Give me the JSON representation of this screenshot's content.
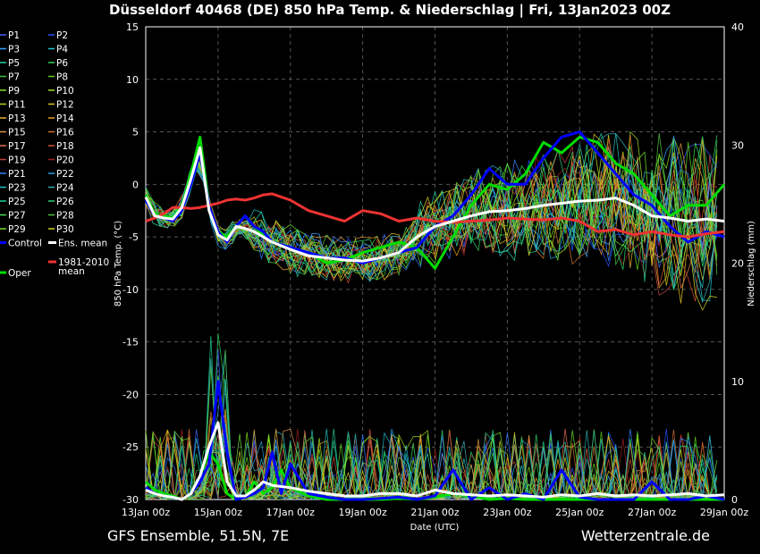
{
  "chart_data": {
    "type": "line",
    "title": "Düsseldorf 40468 (DE)  850 hPa Temp. & Niederschlag | Fri, 13Jan2023 00Z",
    "xlabel": "Date (UTC)",
    "ylabel": "850 hPa Temp. (°C)",
    "y2label": "Niederschlag (mm)",
    "footer_left": "GFS Ensemble, 51.5N, 7E",
    "footer_right": "Wetterzentrale.de",
    "xlim": [
      0,
      16
    ],
    "ylim": [
      -30,
      15
    ],
    "y2lim": [
      0,
      40
    ],
    "grid": true,
    "x_ticks": [
      {
        "x": 0,
        "label": "13Jan 00z"
      },
      {
        "x": 2,
        "label": "15Jan 00z"
      },
      {
        "x": 4,
        "label": "17Jan 00z"
      },
      {
        "x": 6,
        "label": "19Jan 00z"
      },
      {
        "x": 8,
        "label": "21Jan 00z"
      },
      {
        "x": 10,
        "label": "23Jan 00z"
      },
      {
        "x": 12,
        "label": "25Jan 00z"
      },
      {
        "x": 14,
        "label": "27Jan 00z"
      },
      {
        "x": 16,
        "label": "29Jan 00z"
      }
    ],
    "y_ticks": [
      15,
      10,
      5,
      0,
      -5,
      -10,
      -15,
      -20,
      -25,
      -30
    ],
    "y2_ticks": [
      40,
      30,
      20,
      10,
      0
    ],
    "legend": {
      "placement": "left",
      "members": [
        "P1",
        "P2",
        "P3",
        "P4",
        "P5",
        "P6",
        "P7",
        "P8",
        "P9",
        "P10",
        "P11",
        "P12",
        "P13",
        "P14",
        "P15",
        "P16",
        "P17",
        "P18",
        "P19",
        "P20",
        "P21",
        "P22",
        "P23",
        "P24",
        "P25",
        "P26",
        "P27",
        "P28",
        "P29",
        "P30"
      ],
      "member_colors": [
        "#4060ff",
        "#2050ff",
        "#30a0ff",
        "#20c0d0",
        "#20d0a0",
        "#30d060",
        "#40c040",
        "#60d020",
        "#80e020",
        "#a0e020",
        "#c0d020",
        "#e0c020",
        "#e0b030",
        "#f0a020",
        "#e09040",
        "#d07030",
        "#e07050",
        "#d05030",
        "#c04040",
        "#a02020",
        "#3080ff",
        "#20a0e0",
        "#20c0c0",
        "#30b0b0",
        "#20d090",
        "#30d070",
        "#40e050",
        "#50c040",
        "#70e030",
        "#d0d020"
      ],
      "control": {
        "label": "Control",
        "color": "#0000ff"
      },
      "ens_mean": {
        "label": "Ens. mean",
        "color": "#ffffff"
      },
      "oper": {
        "label": "Oper",
        "color": "#00dd00"
      },
      "clim": {
        "label_line1": "1981-2010",
        "label_line2": "mean",
        "color": "#ee3333"
      }
    },
    "series": [
      {
        "name": "Control",
        "axis": "temp",
        "x": [
          0,
          0.25,
          0.5,
          0.75,
          1,
          1.25,
          1.5,
          1.75,
          2,
          2.25,
          2.5,
          2.75,
          3,
          3.25,
          3.5,
          4,
          4.5,
          5,
          5.5,
          6,
          6.5,
          7,
          7.5,
          8,
          8.5,
          9,
          9.5,
          10,
          10.5,
          11,
          11.5,
          12,
          12.5,
          13,
          13.5,
          14,
          14.5,
          15,
          15.5,
          16
        ],
        "y": [
          -1.5,
          -3,
          -3.2,
          -3.5,
          -2.5,
          0,
          3,
          -2,
          -4.5,
          -5.5,
          -4,
          -3,
          -4,
          -4.5,
          -5.5,
          -6,
          -6.5,
          -7,
          -7,
          -7.5,
          -7,
          -6.5,
          -6,
          -4,
          -3,
          -1,
          1.5,
          0,
          0,
          2.5,
          4.5,
          5,
          3,
          1,
          -1,
          -2,
          -4,
          -5.5,
          -4.5,
          -5
        ]
      },
      {
        "name": "Oper",
        "axis": "temp",
        "x": [
          0,
          0.25,
          0.5,
          0.75,
          1,
          1.25,
          1.5,
          1.75,
          2,
          2.25,
          2.5,
          2.75,
          3,
          3.25,
          3.5,
          4,
          4.5,
          5,
          5.5,
          6,
          6.5,
          7,
          7.5,
          8,
          8.5,
          9,
          9.5,
          10,
          10.5,
          11,
          11.5,
          12,
          12.5,
          13,
          13.5,
          14,
          14.5,
          15,
          15.5,
          16
        ],
        "y": [
          -1,
          -2.8,
          -3,
          -3.2,
          -2,
          1,
          4.5,
          -2,
          -4.5,
          -5,
          -4,
          -3,
          -4,
          -4.8,
          -5.5,
          -6,
          -6.5,
          -7.5,
          -7.2,
          -6.5,
          -6,
          -5.5,
          -6,
          -8,
          -5,
          -2,
          0,
          -0.5,
          1,
          4,
          3,
          4.5,
          4,
          2,
          1,
          -1,
          -3,
          -2,
          -2,
          0
        ]
      },
      {
        "name": "Ens. mean",
        "axis": "temp",
        "x": [
          0,
          0.25,
          0.5,
          0.75,
          1,
          1.25,
          1.5,
          1.75,
          2,
          2.25,
          2.5,
          2.75,
          3,
          3.25,
          3.5,
          4,
          4.5,
          5,
          5.5,
          6,
          6.5,
          7,
          7.5,
          8,
          8.5,
          9,
          9.5,
          10,
          10.5,
          11,
          11.5,
          12,
          12.5,
          13,
          13.5,
          14,
          14.5,
          15,
          15.5,
          16
        ],
        "y": [
          -1.2,
          -3,
          -3.2,
          -3.3,
          -2.2,
          0.5,
          3.5,
          -2.5,
          -4.8,
          -5.3,
          -4,
          -4.2,
          -4.5,
          -5,
          -5.5,
          -6.2,
          -6.8,
          -7,
          -7.2,
          -7.3,
          -7,
          -6.5,
          -5,
          -4,
          -3.5,
          -3,
          -2.6,
          -2.5,
          -2.3,
          -2,
          -1.8,
          -1.6,
          -1.5,
          -1.3,
          -2,
          -3,
          -3.2,
          -3.5,
          -3.3,
          -3.5
        ]
      },
      {
        "name": "1981-2010 mean",
        "axis": "temp",
        "x": [
          0,
          0.25,
          0.5,
          0.75,
          1,
          1.25,
          1.5,
          1.75,
          2,
          2.25,
          2.5,
          2.75,
          3,
          3.25,
          3.5,
          4,
          4.5,
          5,
          5.5,
          6,
          6.5,
          7,
          7.5,
          8,
          8.5,
          9,
          9.5,
          10,
          10.5,
          11,
          11.5,
          12,
          12.5,
          13,
          13.5,
          14,
          14.5,
          15,
          15.5,
          16
        ],
        "y": [
          -3.5,
          -3.2,
          -2.8,
          -2.2,
          -2.2,
          -2.3,
          -2.2,
          -2,
          -1.8,
          -1.5,
          -1.4,
          -1.5,
          -1.3,
          -1,
          -0.9,
          -1.5,
          -2.5,
          -3,
          -3.5,
          -2.5,
          -2.8,
          -3.5,
          -3.2,
          -3.5,
          -3.6,
          -3.5,
          -3.4,
          -3.2,
          -3.3,
          -3.4,
          -3.2,
          -3.5,
          -4.5,
          -4.3,
          -4.8,
          -4.5,
          -4.8,
          -5,
          -4.7,
          -4.5
        ]
      },
      {
        "name": "Control",
        "axis": "precip",
        "x": [
          0,
          0.25,
          0.5,
          0.75,
          1,
          1.25,
          1.5,
          1.75,
          2,
          2.25,
          2.5,
          2.75,
          3,
          3.25,
          3.5,
          3.75,
          4,
          4.5,
          5,
          5.5,
          6,
          6.5,
          7,
          7.5,
          8,
          8.5,
          9,
          9.5,
          10,
          10.5,
          11,
          11.5,
          12,
          12.5,
          13,
          13.5,
          14,
          14.5,
          15,
          15.5,
          16
        ],
        "y": [
          1,
          0.5,
          0.3,
          0.2,
          0,
          0.5,
          1.5,
          3,
          10,
          4,
          0,
          0.2,
          0.5,
          1,
          4,
          0.5,
          3,
          0.5,
          0.2,
          0,
          0,
          0.1,
          0.2,
          0,
          0.3,
          2.5,
          0,
          1,
          0,
          0.5,
          0,
          2.5,
          0.2,
          0,
          0,
          0,
          1.5,
          0,
          0,
          0.3,
          0
        ]
      },
      {
        "name": "Oper",
        "axis": "precip",
        "x": [
          0,
          0.25,
          0.5,
          0.75,
          1,
          1.25,
          1.5,
          1.75,
          2,
          2.25,
          2.5,
          2.75,
          3,
          3.25,
          3.5,
          3.75,
          4,
          4.5,
          5,
          5.5,
          6,
          6.5,
          7,
          7.5,
          8,
          8.5,
          9,
          9.5,
          10,
          10.5,
          11,
          11.5,
          12,
          12.5,
          13,
          13.5,
          14,
          14.5,
          15,
          15.5,
          16
        ],
        "y": [
          1.5,
          0.8,
          0.5,
          0.3,
          0,
          0.5,
          2,
          4,
          3,
          0.5,
          0,
          0.2,
          1.5,
          0.5,
          1,
          2.5,
          1,
          0.3,
          0,
          0,
          0,
          0,
          0.1,
          0,
          0.2,
          0.5,
          0.3,
          0,
          0.1,
          0,
          0,
          0,
          0,
          0,
          0,
          0,
          0,
          0,
          0,
          0,
          0
        ]
      },
      {
        "name": "Ens. mean",
        "axis": "precip",
        "x": [
          0,
          0.25,
          0.5,
          0.75,
          1,
          1.25,
          1.5,
          1.75,
          2,
          2.25,
          2.5,
          2.75,
          3,
          3.25,
          3.5,
          3.75,
          4,
          4.5,
          5,
          5.5,
          6,
          6.5,
          7,
          7.5,
          8,
          8.5,
          9,
          9.5,
          10,
          10.5,
          11,
          11.5,
          12,
          12.5,
          13,
          13.5,
          14,
          14.5,
          15,
          15.5,
          16
        ],
        "y": [
          0.8,
          0.5,
          0.3,
          0.2,
          0,
          0.5,
          2,
          4.5,
          6.5,
          1.5,
          0.3,
          0.3,
          0.8,
          1.5,
          1.2,
          1.1,
          1,
          0.7,
          0.5,
          0.3,
          0.3,
          0.5,
          0.5,
          0.3,
          0.8,
          0.5,
          0.4,
          0.3,
          0.4,
          0.3,
          0.2,
          0.4,
          0.3,
          0.5,
          0.3,
          0.4,
          0.3,
          0.4,
          0.5,
          0.3,
          0.4
        ]
      }
    ]
  }
}
